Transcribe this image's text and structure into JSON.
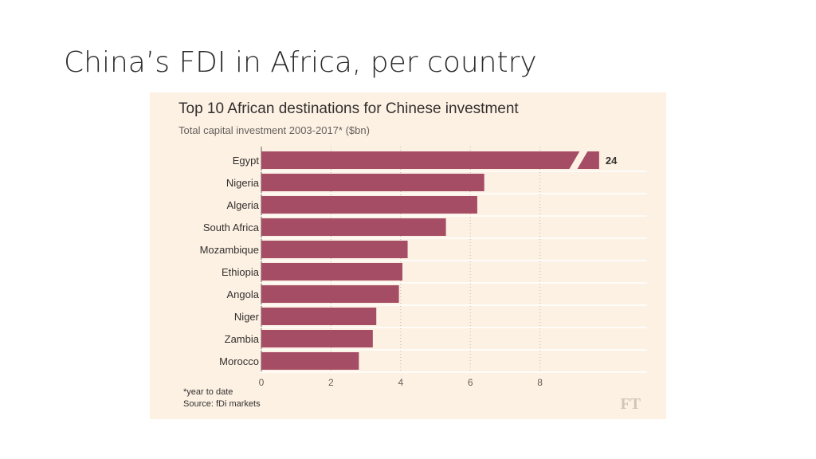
{
  "slide": {
    "title": "China’s FDI in Africa, per country"
  },
  "chart_data": {
    "type": "bar",
    "orientation": "horizontal",
    "title": "Top 10 African destinations for Chinese investment",
    "subtitle": "Total capital investment 2003-2017* ($bn)",
    "categories": [
      "Egypt",
      "Nigeria",
      "Algeria",
      "South Africa",
      "Mozambique",
      "Ethiopia",
      "Angola",
      "Niger",
      "Zambia",
      "Morocco"
    ],
    "values": [
      24,
      6.4,
      6.2,
      5.3,
      4.2,
      4.05,
      3.95,
      3.3,
      3.2,
      2.8
    ],
    "data_labels": [
      {
        "category": "Egypt",
        "label": "24"
      }
    ],
    "axis_break": {
      "category": "Egypt",
      "note": "bar truncated with break"
    },
    "x_ticks": [
      "0",
      "2",
      "4",
      "6",
      "8"
    ],
    "xlim": [
      0,
      9.7
    ],
    "grid": true,
    "bar_color": "#a64d66",
    "background_color": "#fdf1e4"
  },
  "footnote": "*year to date",
  "source": "Source: fDi markets",
  "logo": "FT"
}
